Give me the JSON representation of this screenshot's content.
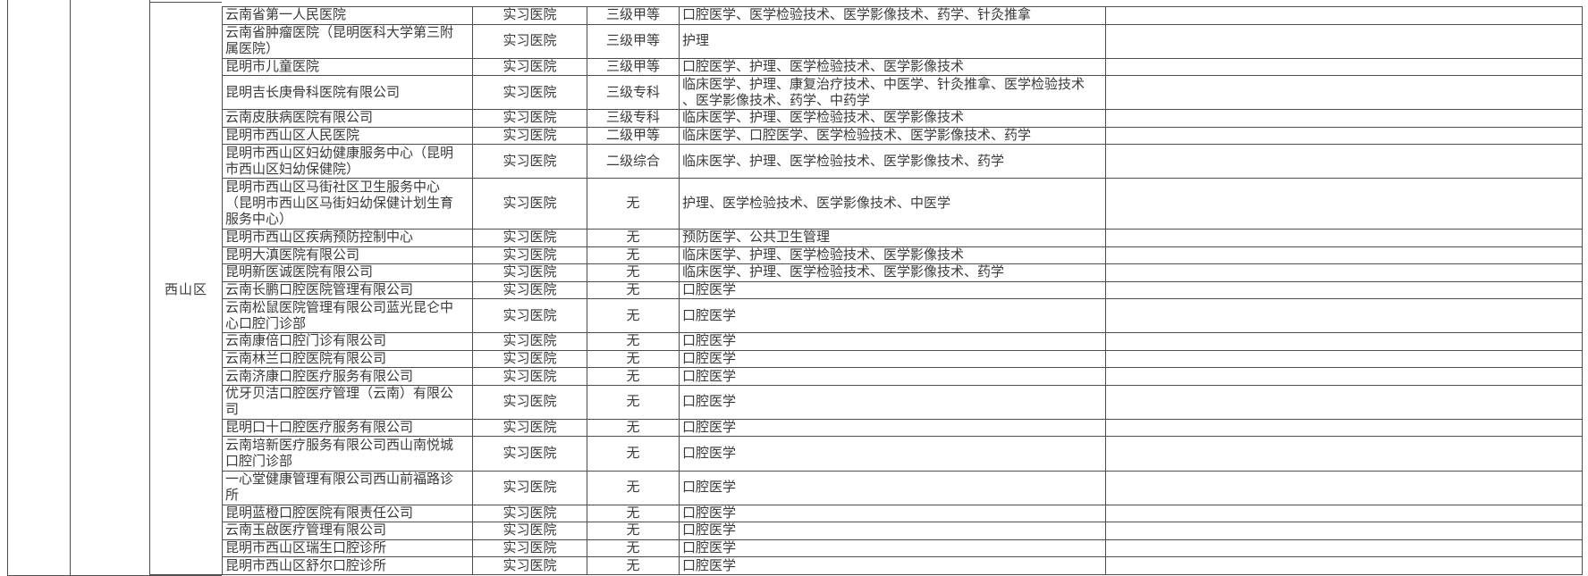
{
  "page": {
    "background_color": "#ffffff",
    "text_color": "#3a3a3a",
    "border_color": "#4d4d4d"
  },
  "table": {
    "district_label": "西山区",
    "rows": [
      {
        "name": "云南省第一人民医院",
        "type": "实习医院",
        "grade": "三级甲等",
        "specialties": "口腔医学、医学检验技术、医学影像技术、药学、针灸推拿",
        "note": ""
      },
      {
        "name": "云南省肿瘤医院（昆明医科大学第三附属医院）",
        "type": "实习医院",
        "grade": "三级甲等",
        "specialties": "护理",
        "note": ""
      },
      {
        "name": "昆明市儿童医院",
        "type": "实习医院",
        "grade": "三级甲等",
        "specialties": "口腔医学、护理、医学检验技术、医学影像技术",
        "note": ""
      },
      {
        "name": "昆明吉长庚骨科医院有限公司",
        "type": "实习医院",
        "grade": "三级专科",
        "specialties": "临床医学、护理、康复治疗技术、中医学、针灸推拿、医学检验技术、医学影像技术、药学、中药学",
        "note": ""
      },
      {
        "name": "云南皮肤病医院有限公司",
        "type": "实习医院",
        "grade": "三级专科",
        "specialties": "临床医学、护理、医学检验技术、医学影像技术",
        "note": ""
      },
      {
        "name": "昆明市西山区人民医院",
        "type": "实习医院",
        "grade": "二级甲等",
        "specialties": "临床医学、口腔医学、医学检验技术、医学影像技术、药学",
        "note": ""
      },
      {
        "name": "昆明市西山区妇幼健康服务中心（昆明市西山区妇幼保健院）",
        "type": "实习医院",
        "grade": "二级综合",
        "specialties": "临床医学、护理、医学检验技术、医学影像技术、药学",
        "note": ""
      },
      {
        "name": "昆明市西山区马街社区卫生服务中心（昆明市西山区马街妇幼保健计划生育服务中心）",
        "type": "实习医院",
        "grade": "无",
        "specialties": "护理、医学检验技术、医学影像技术、中医学",
        "note": ""
      },
      {
        "name": "昆明市西山区疾病预防控制中心",
        "type": "实习医院",
        "grade": "无",
        "specialties": "预防医学、公共卫生管理",
        "note": ""
      },
      {
        "name": "昆明大滇医院有限公司",
        "type": "实习医院",
        "grade": "无",
        "specialties": "临床医学、护理、医学检验技术、医学影像技术",
        "note": ""
      },
      {
        "name": "昆明新医诚医院有限公司",
        "type": "实习医院",
        "grade": "无",
        "specialties": "临床医学、护理、医学检验技术、医学影像技术、药学",
        "note": ""
      },
      {
        "name": "云南长鹏口腔医院管理有限公司",
        "type": "实习医院",
        "grade": "无",
        "specialties": "口腔医学",
        "note": ""
      },
      {
        "name": "云南松鼠医院管理有限公司蓝光昆仑中心口腔门诊部",
        "type": "实习医院",
        "grade": "无",
        "specialties": "口腔医学",
        "note": ""
      },
      {
        "name": "云南康倍口腔门诊有限公司",
        "type": "实习医院",
        "grade": "无",
        "specialties": "口腔医学",
        "note": ""
      },
      {
        "name": "云南林兰口腔医院有限公司",
        "type": "实习医院",
        "grade": "无",
        "specialties": "口腔医学",
        "note": ""
      },
      {
        "name": "云南济康口腔医疗服务有限公司",
        "type": "实习医院",
        "grade": "无",
        "specialties": "口腔医学",
        "note": ""
      },
      {
        "name": "优牙贝洁口腔医疗管理（云南）有限公司",
        "type": "实习医院",
        "grade": "无",
        "specialties": "口腔医学",
        "note": ""
      },
      {
        "name": "昆明口十口腔医疗服务有限公司",
        "type": "实习医院",
        "grade": "无",
        "specialties": "口腔医学",
        "note": ""
      },
      {
        "name": "云南培新医疗服务有限公司西山南悦城口腔门诊部",
        "type": "实习医院",
        "grade": "无",
        "specialties": "口腔医学",
        "note": ""
      },
      {
        "name": "一心堂健康管理有限公司西山前福路诊所",
        "type": "实习医院",
        "grade": "无",
        "specialties": "口腔医学",
        "note": ""
      },
      {
        "name": "昆明蓝橙口腔医院有限责任公司",
        "type": "实习医院",
        "grade": "无",
        "specialties": "口腔医学",
        "note": ""
      },
      {
        "name": "云南玉啟医疗管理有限公司",
        "type": "实习医院",
        "grade": "无",
        "specialties": "口腔医学",
        "note": ""
      },
      {
        "name": "昆明市西山区瑞生口腔诊所",
        "type": "实习医院",
        "grade": "无",
        "specialties": "口腔医学",
        "note": ""
      },
      {
        "name": "昆明市西山区舒尔口腔诊所",
        "type": "实习医院",
        "grade": "无",
        "specialties": "口腔医学",
        "note": ""
      }
    ]
  }
}
